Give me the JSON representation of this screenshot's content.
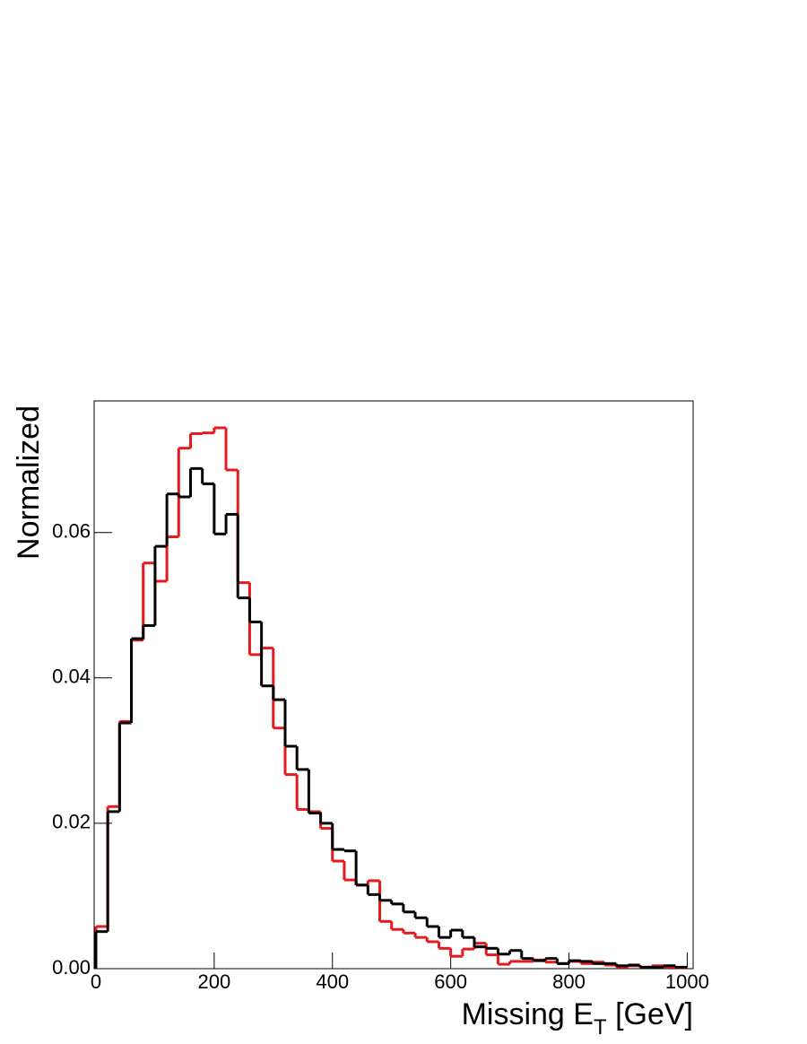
{
  "chart_data": {
    "type": "histogram",
    "x_label": {
      "text": "Missing E",
      "subscript": "T",
      "suffix": " [GeV]"
    },
    "y_label": "Normalized",
    "bins": [
      0,
      20,
      40,
      60,
      80,
      100,
      120,
      140,
      160,
      180,
      200,
      220,
      240,
      260,
      280,
      300,
      320,
      340,
      360,
      380,
      400,
      420,
      440,
      460,
      480,
      500,
      520,
      540,
      560,
      580,
      600,
      620,
      640,
      660,
      680,
      700,
      720,
      740,
      760,
      780,
      800,
      820,
      840,
      860,
      880,
      900,
      920,
      940,
      960,
      980,
      1000
    ],
    "series": [
      {
        "color": "#e41a1c",
        "values": [
          0.0058,
          0.0223,
          0.034,
          0.0452,
          0.0558,
          0.0533,
          0.0594,
          0.0716,
          0.0736,
          0.0737,
          0.0744,
          0.0686,
          0.0531,
          0.0432,
          0.0441,
          0.0331,
          0.0267,
          0.0219,
          0.0216,
          0.0193,
          0.0148,
          0.0122,
          0.0115,
          0.0121,
          0.0065,
          0.0054,
          0.0049,
          0.0043,
          0.0037,
          0.0028,
          0.0017,
          0.0027,
          0.0035,
          0.0019,
          0.0006,
          0.001,
          0.001,
          0.0012,
          0.0009,
          0.0007,
          0.001,
          0.0007,
          0.0009,
          0.0005,
          0.0002,
          0.0004,
          0.0002,
          0.0004,
          0.0002,
          0.0001
        ]
      },
      {
        "color": "#000000",
        "values": [
          0.0051,
          0.0216,
          0.0338,
          0.0454,
          0.0472,
          0.0581,
          0.0653,
          0.0649,
          0.0688,
          0.0667,
          0.0598,
          0.0625,
          0.051,
          0.0477,
          0.0389,
          0.037,
          0.0306,
          0.0274,
          0.0214,
          0.02,
          0.0164,
          0.0162,
          0.0115,
          0.0102,
          0.0094,
          0.0089,
          0.0078,
          0.007,
          0.0058,
          0.0043,
          0.0053,
          0.0043,
          0.003,
          0.0028,
          0.002,
          0.0025,
          0.0014,
          0.0011,
          0.0014,
          0.0007,
          0.0011,
          0.001,
          0.0007,
          0.0007,
          0.0004,
          0.0005,
          0.0002,
          0.0002,
          0.0004,
          0.0002
        ]
      }
    ],
    "xlim": [
      -3,
      1010
    ],
    "ylim": [
      0,
      0.0781
    ],
    "xticks": [
      0,
      200,
      400,
      600,
      800,
      1000
    ],
    "yticks": [
      {
        "value": 0,
        "label": "0.00"
      },
      0.02,
      0.04,
      0.06
    ]
  }
}
